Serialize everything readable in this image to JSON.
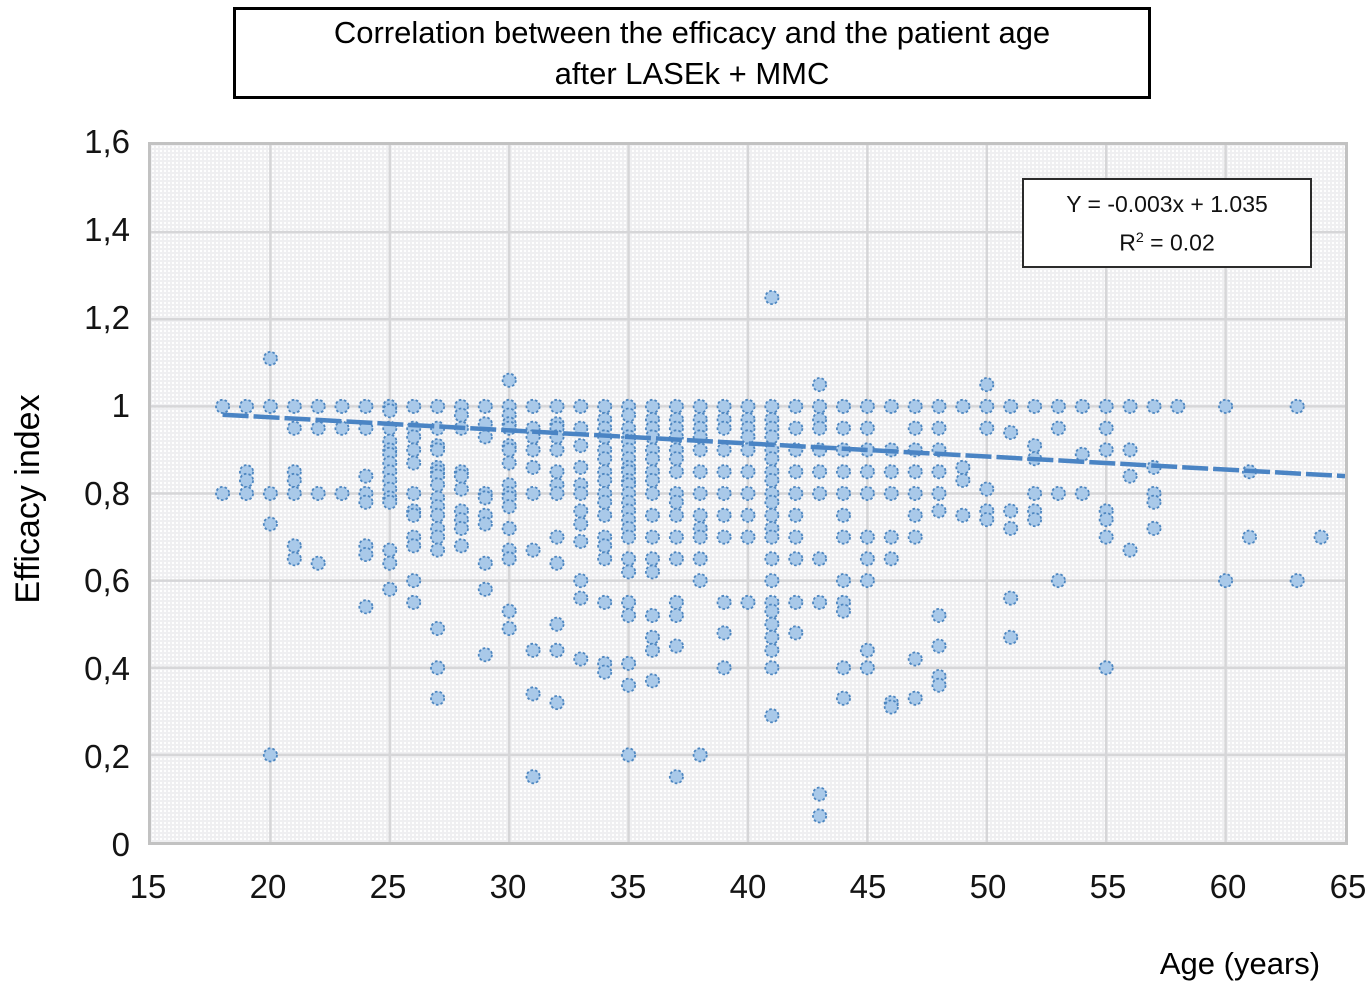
{
  "title": {
    "line1": "Correlation between the efficacy and the patient age",
    "line2": "after LASEk + MMC"
  },
  "annotation": {
    "equation": "Y = -0.003x + 1.035",
    "r2_base": "R",
    "r2_sup": "2",
    "r2_rest": " = 0.02"
  },
  "colors": {
    "point_fill": "#a9c9e9",
    "point_stroke": "#4d86c0",
    "trend": "#4a84c4",
    "grid": "#d6d6d8",
    "text": "#141414"
  },
  "chart_data": {
    "type": "scatter",
    "title": "Correlation between the efficacy and the patient age after LASEk + MMC",
    "xlabel": "Age (years)",
    "ylabel": "Efficacy index",
    "xlim": [
      15,
      65
    ],
    "ylim": [
      0,
      1.6
    ],
    "grid": true,
    "legend": false,
    "x_ticks": [
      15,
      20,
      25,
      30,
      35,
      40,
      45,
      50,
      55,
      60,
      65
    ],
    "y_ticks": [
      0,
      0.2,
      0.4,
      0.6,
      0.8,
      1,
      1.2,
      1.4,
      1.6
    ],
    "y_tick_labels": [
      "0",
      "0,2",
      "0,4",
      "0,6",
      "0,8",
      "1",
      "1,2",
      "1,4",
      "1,6"
    ],
    "trendline": {
      "slope": -0.003,
      "intercept": 1.035,
      "r2": 0.02,
      "x_start": 18,
      "x_end": 65
    },
    "series": [
      {
        "age": 18,
        "values": [
          1.0,
          0.8
        ]
      },
      {
        "age": 19,
        "values": [
          1.0,
          0.85,
          0.83,
          0.8
        ]
      },
      {
        "age": 20,
        "values": [
          1.11,
          1.0,
          0.8,
          0.73,
          0.2
        ]
      },
      {
        "age": 21,
        "values": [
          1.0,
          0.95,
          0.85,
          0.83,
          0.8,
          0.68,
          0.65
        ]
      },
      {
        "age": 22,
        "values": [
          1.0,
          0.95,
          0.8,
          0.64
        ]
      },
      {
        "age": 23,
        "values": [
          1.0,
          0.95,
          0.8
        ]
      },
      {
        "age": 24,
        "values": [
          1.0,
          0.95,
          0.84,
          0.8,
          0.78,
          0.68,
          0.66,
          0.54
        ]
      },
      {
        "age": 25,
        "values": [
          1.0,
          0.99,
          0.95,
          0.92,
          0.9,
          0.89,
          0.87,
          0.85,
          0.83,
          0.81,
          0.79,
          0.78,
          0.67,
          0.64,
          0.58
        ]
      },
      {
        "age": 26,
        "values": [
          1.0,
          0.95,
          0.93,
          0.9,
          0.87,
          0.8,
          0.76,
          0.75,
          0.7,
          0.68,
          0.6,
          0.55
        ]
      },
      {
        "age": 27,
        "values": [
          1.0,
          0.95,
          0.91,
          0.9,
          0.86,
          0.85,
          0.84,
          0.82,
          0.79,
          0.77,
          0.75,
          0.72,
          0.7,
          0.67,
          0.49,
          0.4,
          0.33
        ]
      },
      {
        "age": 28,
        "values": [
          1.0,
          0.98,
          0.95,
          0.85,
          0.84,
          0.81,
          0.76,
          0.74,
          0.72,
          0.68
        ]
      },
      {
        "age": 29,
        "values": [
          1.0,
          0.96,
          0.93,
          0.8,
          0.79,
          0.75,
          0.73,
          0.64,
          0.58,
          0.43
        ]
      },
      {
        "age": 30,
        "values": [
          1.06,
          1.0,
          0.98,
          0.96,
          0.95,
          0.91,
          0.9,
          0.87,
          0.82,
          0.8,
          0.79,
          0.77,
          0.72,
          0.67,
          0.65,
          0.53,
          0.49
        ]
      },
      {
        "age": 31,
        "values": [
          1.0,
          0.95,
          0.93,
          0.9,
          0.86,
          0.8,
          0.67,
          0.44,
          0.34,
          0.15
        ]
      },
      {
        "age": 32,
        "values": [
          1.0,
          0.96,
          0.95,
          0.93,
          0.9,
          0.85,
          0.82,
          0.8,
          0.7,
          0.64,
          0.5,
          0.44,
          0.32
        ]
      },
      {
        "age": 33,
        "values": [
          1.0,
          0.95,
          0.91,
          0.86,
          0.82,
          0.8,
          0.76,
          0.73,
          0.69,
          0.6,
          0.56,
          0.42
        ]
      },
      {
        "age": 34,
        "values": [
          1.0,
          0.97,
          0.95,
          0.93,
          0.9,
          0.88,
          0.85,
          0.83,
          0.8,
          0.78,
          0.75,
          0.7,
          0.68,
          0.65,
          0.55,
          0.41,
          0.39
        ]
      },
      {
        "age": 35,
        "values": [
          1.0,
          0.98,
          0.95,
          0.93,
          0.92,
          0.9,
          0.88,
          0.86,
          0.85,
          0.83,
          0.82,
          0.8,
          0.78,
          0.76,
          0.74,
          0.72,
          0.7,
          0.65,
          0.62,
          0.55,
          0.52,
          0.41,
          0.36,
          0.2
        ]
      },
      {
        "age": 36,
        "values": [
          1.0,
          0.97,
          0.95,
          0.93,
          0.9,
          0.88,
          0.85,
          0.83,
          0.8,
          0.75,
          0.7,
          0.65,
          0.62,
          0.52,
          0.47,
          0.44,
          0.37
        ]
      },
      {
        "age": 37,
        "values": [
          1.0,
          0.97,
          0.95,
          0.93,
          0.9,
          0.88,
          0.85,
          0.8,
          0.78,
          0.75,
          0.7,
          0.65,
          0.55,
          0.52,
          0.45,
          0.15
        ]
      },
      {
        "age": 38,
        "values": [
          1.0,
          0.97,
          0.95,
          0.93,
          0.9,
          0.85,
          0.8,
          0.75,
          0.72,
          0.7,
          0.65,
          0.6,
          0.2
        ]
      },
      {
        "age": 39,
        "values": [
          1.0,
          0.97,
          0.95,
          0.9,
          0.85,
          0.8,
          0.75,
          0.7,
          0.55,
          0.48,
          0.4
        ]
      },
      {
        "age": 40,
        "values": [
          1.0,
          0.97,
          0.95,
          0.93,
          0.9,
          0.85,
          0.8,
          0.75,
          0.7,
          0.55
        ]
      },
      {
        "age": 41,
        "values": [
          1.25,
          1.0,
          0.97,
          0.95,
          0.93,
          0.9,
          0.88,
          0.85,
          0.83,
          0.8,
          0.78,
          0.75,
          0.72,
          0.7,
          0.65,
          0.6,
          0.55,
          0.53,
          0.5,
          0.47,
          0.44,
          0.4,
          0.29
        ]
      },
      {
        "age": 42,
        "values": [
          1.0,
          0.95,
          0.9,
          0.85,
          0.8,
          0.75,
          0.7,
          0.65,
          0.55,
          0.48
        ]
      },
      {
        "age": 43,
        "values": [
          1.05,
          1.0,
          0.97,
          0.95,
          0.9,
          0.85,
          0.8,
          0.65,
          0.55,
          0.11,
          0.06
        ]
      },
      {
        "age": 44,
        "values": [
          1.0,
          0.95,
          0.9,
          0.85,
          0.8,
          0.75,
          0.7,
          0.6,
          0.55,
          0.53,
          0.4,
          0.33
        ]
      },
      {
        "age": 45,
        "values": [
          1.0,
          0.95,
          0.9,
          0.85,
          0.8,
          0.7,
          0.65,
          0.6,
          0.44,
          0.4
        ]
      },
      {
        "age": 46,
        "values": [
          1.0,
          0.9,
          0.85,
          0.8,
          0.7,
          0.65,
          0.32,
          0.31
        ]
      },
      {
        "age": 47,
        "values": [
          1.0,
          0.95,
          0.9,
          0.85,
          0.8,
          0.75,
          0.7,
          0.42,
          0.33
        ]
      },
      {
        "age": 48,
        "values": [
          1.0,
          0.95,
          0.9,
          0.85,
          0.8,
          0.76,
          0.52,
          0.45,
          0.38,
          0.36
        ]
      },
      {
        "age": 49,
        "values": [
          1.0,
          0.86,
          0.83,
          0.75
        ]
      },
      {
        "age": 50,
        "values": [
          1.05,
          1.0,
          0.95,
          0.81,
          0.76,
          0.74
        ]
      },
      {
        "age": 51,
        "values": [
          1.0,
          0.94,
          0.76,
          0.72,
          0.56,
          0.47
        ]
      },
      {
        "age": 52,
        "values": [
          1.0,
          0.91,
          0.88,
          0.8,
          0.76,
          0.74
        ]
      },
      {
        "age": 53,
        "values": [
          1.0,
          0.95,
          0.8,
          0.6
        ]
      },
      {
        "age": 54,
        "values": [
          1.0,
          0.89,
          0.8
        ]
      },
      {
        "age": 55,
        "values": [
          1.0,
          0.95,
          0.9,
          0.76,
          0.74,
          0.7,
          0.4
        ]
      },
      {
        "age": 56,
        "values": [
          1.0,
          0.9,
          0.84,
          0.67
        ]
      },
      {
        "age": 57,
        "values": [
          1.0,
          0.86,
          0.8,
          0.78,
          0.72
        ]
      },
      {
        "age": 58,
        "values": [
          1.0
        ]
      },
      {
        "age": 60,
        "values": [
          1.0,
          0.6
        ]
      },
      {
        "age": 61,
        "values": [
          0.85,
          0.7
        ]
      },
      {
        "age": 63,
        "values": [
          1.0,
          0.6
        ]
      },
      {
        "age": 64,
        "values": [
          0.7
        ]
      }
    ]
  }
}
